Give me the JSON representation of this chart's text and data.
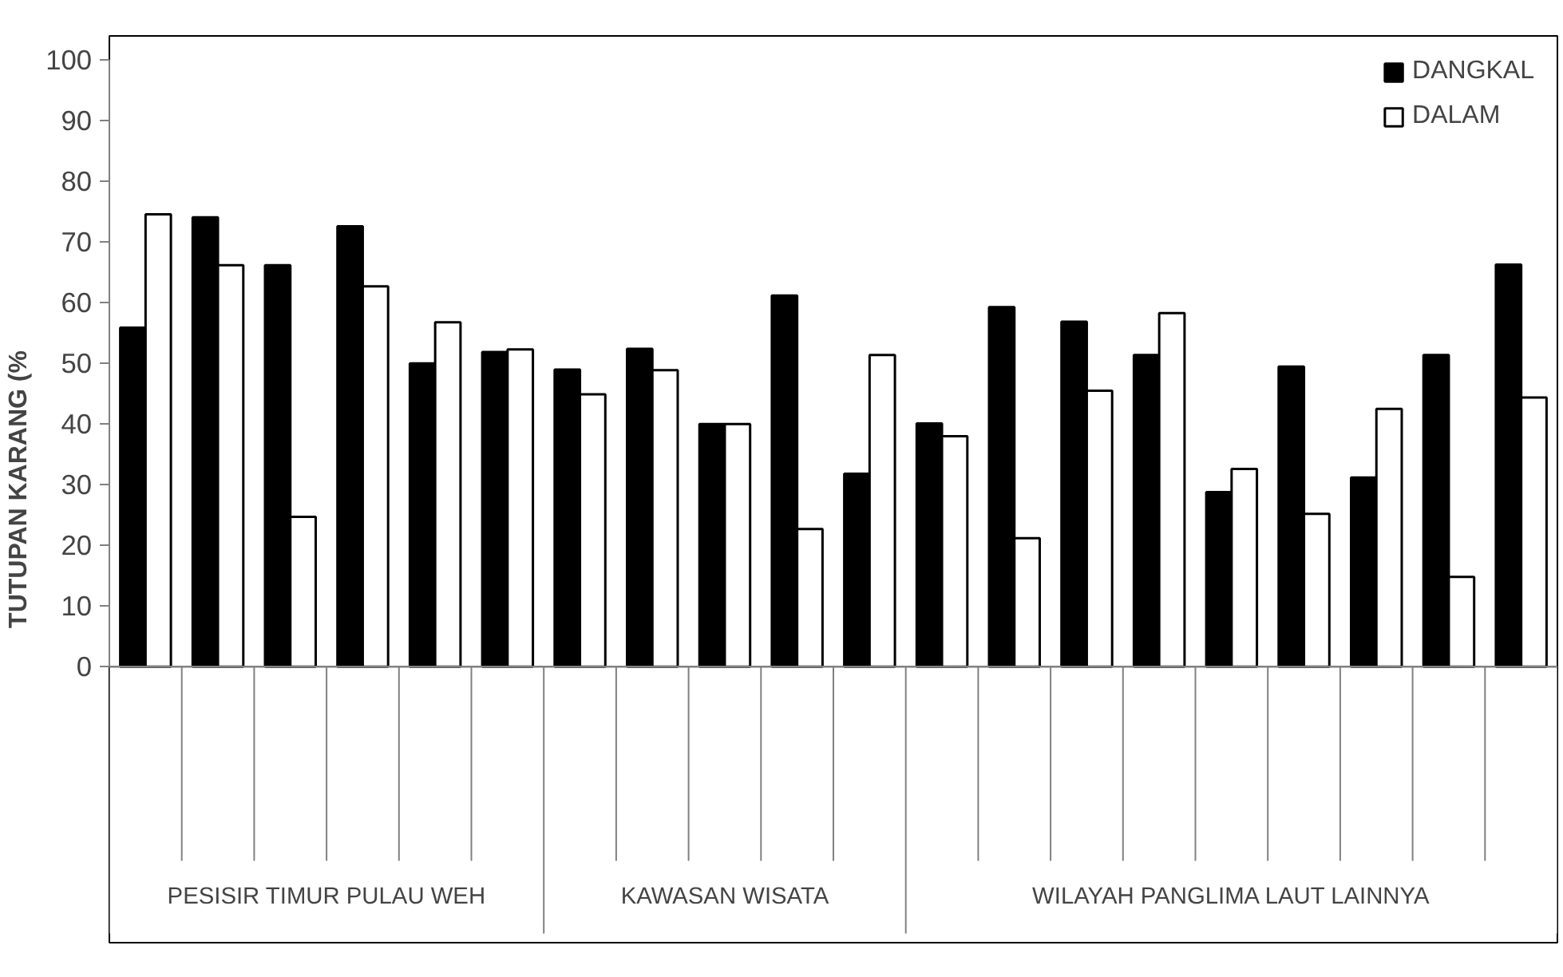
{
  "chart_data": {
    "type": "bar",
    "ylabel": "TUTUPAN KARANG (%",
    "categories": [
      null,
      null,
      null,
      null,
      null,
      null,
      null,
      null,
      null,
      null,
      null,
      null,
      null,
      null,
      null,
      null,
      null,
      null,
      null,
      null
    ],
    "series": [
      {
        "name": "DANGKAL",
        "color": "#000000",
        "values": [
          55.9,
          74.1,
          66.2,
          72.6,
          50.0,
          51.9,
          49.0,
          52.4,
          40.0,
          61.2,
          31.8,
          40.1,
          59.3,
          56.9,
          51.4,
          28.8,
          49.5,
          31.2,
          51.4,
          66.3
        ]
      },
      {
        "name": "DALAM",
        "color": "#ffffff",
        "values": [
          74.6,
          66.2,
          24.7,
          62.7,
          56.8,
          52.3,
          44.9,
          48.9,
          40.0,
          22.7,
          51.4,
          38.0,
          21.2,
          45.5,
          58.3,
          32.6,
          25.2,
          42.5,
          14.8,
          44.4
        ]
      }
    ],
    "ylim": [
      0,
      100
    ],
    "yticks": [
      0,
      10,
      20,
      30,
      40,
      50,
      60,
      70,
      80,
      90,
      100
    ],
    "grid": false,
    "legend": "top right",
    "annotations": [
      "PESISIR TIMUR PULAU WEH",
      "KAWASAN WISATA",
      "WILAYAH PANGLIMA LAUT LAINNYA"
    ]
  }
}
